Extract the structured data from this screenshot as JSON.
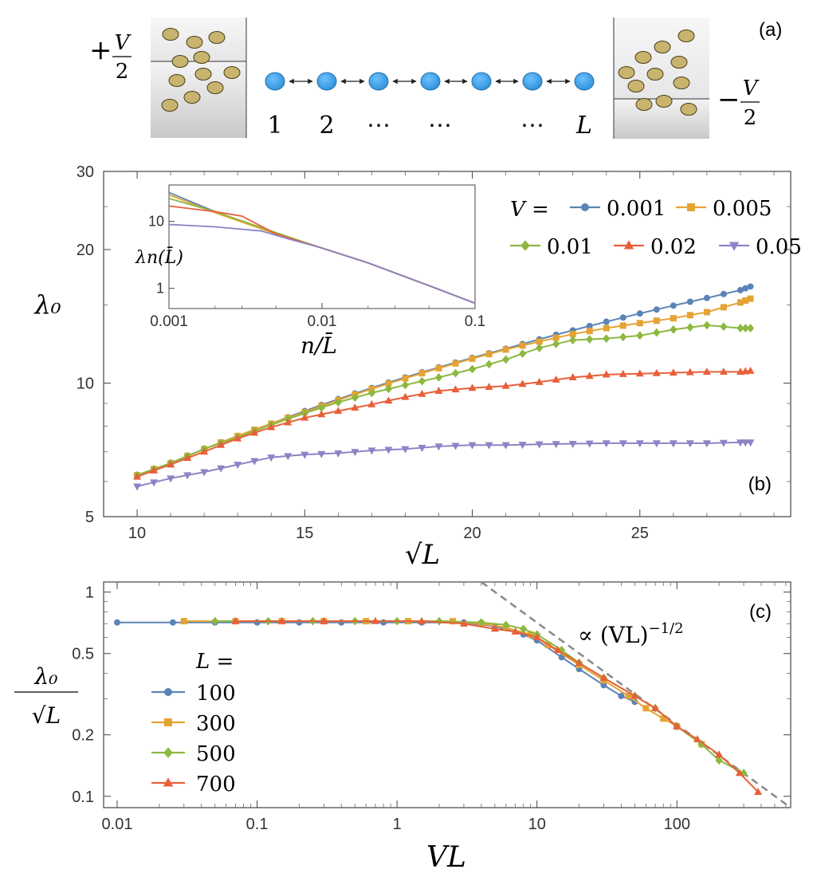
{
  "panel_a": {
    "label": "(a)",
    "left_sign": "+",
    "left_num": "V",
    "left_den": "2",
    "right_sign": "−",
    "right_num": "V",
    "right_den": "2",
    "site_labels": [
      "1",
      "2",
      "⋯",
      "⋯",
      "⋯",
      "L"
    ],
    "colors": {
      "site": "#3ea5ee",
      "particle": "#c8b46e",
      "reservoir": "#d8d8d8"
    }
  },
  "chart_data": [
    {
      "id": "b",
      "type": "line",
      "panel_label": "(b)",
      "xlabel": "√L",
      "ylabel": "λ₀",
      "xlim": [
        9,
        29.5
      ],
      "ylim": [
        5,
        30
      ],
      "yscale": "log",
      "xticks": [
        "10",
        "15",
        "20",
        "25"
      ],
      "yticks": [
        "5",
        "10",
        "20",
        "30"
      ],
      "legend_prefix": "V =",
      "series": [
        {
          "name": "0.001",
          "color": "#5b84b6",
          "marker": "circle",
          "x": [
            10,
            11,
            12,
            13,
            14,
            15,
            16,
            17,
            18,
            19,
            20,
            21,
            22,
            23,
            24,
            25,
            26,
            27,
            28,
            28.3
          ],
          "y": [
            6.2,
            6.6,
            7.1,
            7.6,
            8.1,
            8.65,
            9.2,
            9.75,
            10.3,
            10.85,
            11.4,
            11.95,
            12.55,
            13.15,
            13.75,
            14.35,
            14.95,
            15.55,
            16.2,
            16.5
          ]
        },
        {
          "name": "0.005",
          "color": "#e5a333",
          "marker": "square",
          "x": [
            10,
            11,
            12,
            13,
            14,
            15,
            16,
            17,
            18,
            19,
            20,
            21,
            22,
            23,
            24,
            25,
            26,
            27,
            28,
            28.3
          ],
          "y": [
            6.2,
            6.6,
            7.1,
            7.6,
            8.1,
            8.6,
            9.15,
            9.7,
            10.25,
            10.8,
            11.35,
            11.9,
            12.4,
            12.9,
            13.3,
            13.65,
            14.0,
            14.45,
            15.2,
            15.5
          ]
        },
        {
          "name": "0.01",
          "color": "#8db83f",
          "marker": "diamond",
          "x": [
            10,
            11,
            12,
            13,
            14,
            15,
            16,
            17,
            18,
            19,
            20,
            21,
            22,
            23,
            24,
            25,
            26,
            27,
            28,
            28.3
          ],
          "y": [
            6.2,
            6.6,
            7.1,
            7.55,
            8.05,
            8.55,
            9.05,
            9.5,
            9.9,
            10.3,
            10.75,
            11.3,
            12.0,
            12.5,
            12.6,
            12.8,
            13.2,
            13.5,
            13.3,
            13.3
          ]
        },
        {
          "name": "0.02",
          "color": "#e8603a",
          "marker": "triangle-up",
          "x": [
            10,
            11,
            12,
            13,
            14,
            15,
            16,
            17,
            18,
            19,
            20,
            21,
            22,
            23,
            24,
            25,
            26,
            27,
            28,
            28.3
          ],
          "y": [
            6.15,
            6.55,
            7.0,
            7.5,
            7.95,
            8.35,
            8.65,
            8.95,
            9.3,
            9.6,
            9.75,
            9.85,
            10.05,
            10.3,
            10.45,
            10.5,
            10.55,
            10.6,
            10.6,
            10.65
          ]
        },
        {
          "name": "0.05",
          "color": "#8f82c5",
          "marker": "triangle-down",
          "x": [
            10,
            11,
            12,
            13,
            14,
            15,
            16,
            17,
            18,
            19,
            20,
            21,
            22,
            23,
            24,
            25,
            26,
            27,
            28,
            28.3
          ],
          "y": [
            5.85,
            6.1,
            6.3,
            6.55,
            6.8,
            6.9,
            6.95,
            7.05,
            7.1,
            7.2,
            7.25,
            7.25,
            7.28,
            7.3,
            7.32,
            7.32,
            7.32,
            7.32,
            7.35,
            7.35
          ]
        }
      ],
      "inset": {
        "xlabel": "n/L̄",
        "ylabel": "λn(L̄)",
        "xscale": "log",
        "yscale": "log",
        "xlim": [
          0.001,
          0.1
        ],
        "ylim": [
          0.5,
          35
        ],
        "xticks": [
          "0.001",
          "0.01",
          "0.1"
        ],
        "yticks": [
          "1",
          "10"
        ],
        "series": [
          {
            "name": "0.001",
            "color": "#5b84b6",
            "x": [
              0.001,
              0.002,
              0.005,
              0.01,
              0.02,
              0.05,
              0.1
            ],
            "y": [
              27,
              14,
              6.5,
              4.0,
              2.4,
              1.1,
              0.6
            ]
          },
          {
            "name": "0.005",
            "color": "#e5a333",
            "x": [
              0.001,
              0.002,
              0.005,
              0.01,
              0.02,
              0.05,
              0.1
            ],
            "y": [
              25,
              13.5,
              6.5,
              4.0,
              2.4,
              1.1,
              0.6
            ]
          },
          {
            "name": "0.01",
            "color": "#8db83f",
            "x": [
              0.001,
              0.002,
              0.005,
              0.01,
              0.02,
              0.05,
              0.1
            ],
            "y": [
              22,
              14,
              6.8,
              4.0,
              2.4,
              1.1,
              0.6
            ]
          },
          {
            "name": "0.02",
            "color": "#e8603a",
            "x": [
              0.001,
              0.002,
              0.003,
              0.005,
              0.01,
              0.02,
              0.05,
              0.1
            ],
            "y": [
              17,
              14,
              12,
              6.5,
              4.0,
              2.4,
              1.1,
              0.6
            ]
          },
          {
            "name": "0.05",
            "color": "#8f82c5",
            "x": [
              0.001,
              0.002,
              0.004,
              0.006,
              0.01,
              0.02,
              0.05,
              0.1
            ],
            "y": [
              9,
              8.3,
              7.2,
              5.5,
              4.0,
              2.4,
              1.1,
              0.6
            ]
          }
        ]
      }
    },
    {
      "id": "c",
      "type": "line",
      "panel_label": "(c)",
      "xlabel": "VL",
      "ylabel_num": "λ₀",
      "ylabel_den": "√L",
      "xscale": "log",
      "yscale": "log",
      "xlim": [
        0.008,
        650
      ],
      "ylim": [
        0.088,
        1.12
      ],
      "xticks": [
        "0.01",
        "0.1",
        "1",
        "10",
        "100"
      ],
      "yticks": [
        "0.1",
        "0.2",
        "0.5",
        "1"
      ],
      "legend_title": "L =",
      "annotation": "∝ (VL)",
      "annotation_exp": "−1/2",
      "reference_line": {
        "style": "dashed",
        "color": "#888888",
        "x": [
          4.0,
          650
        ],
        "y": [
          1.12,
          0.088
        ]
      },
      "series": [
        {
          "name": "100",
          "color": "#5b84b6",
          "marker": "circle",
          "x": [
            0.01,
            0.025,
            0.05,
            0.1,
            0.2,
            0.4,
            0.8,
            1.5,
            3,
            5,
            8,
            10,
            15,
            20,
            30,
            40,
            50
          ],
          "y": [
            0.71,
            0.71,
            0.71,
            0.71,
            0.71,
            0.71,
            0.71,
            0.71,
            0.71,
            0.68,
            0.62,
            0.58,
            0.48,
            0.42,
            0.35,
            0.31,
            0.29
          ]
        },
        {
          "name": "300",
          "color": "#e5a333",
          "marker": "square",
          "x": [
            0.03,
            0.07,
            0.15,
            0.3,
            0.6,
            1.2,
            2.5,
            4,
            6,
            9,
            12,
            20,
            30,
            45,
            60,
            80,
            100,
            150
          ],
          "y": [
            0.72,
            0.72,
            0.72,
            0.72,
            0.72,
            0.72,
            0.72,
            0.7,
            0.67,
            0.62,
            0.55,
            0.44,
            0.37,
            0.31,
            0.27,
            0.24,
            0.22,
            0.18
          ]
        },
        {
          "name": "500",
          "color": "#8db83f",
          "marker": "diamond",
          "x": [
            0.05,
            0.12,
            0.25,
            0.5,
            1,
            2,
            4,
            6,
            8,
            10,
            15,
            20,
            30,
            50,
            70,
            100,
            150,
            200,
            300
          ],
          "y": [
            0.72,
            0.72,
            0.72,
            0.72,
            0.72,
            0.72,
            0.71,
            0.69,
            0.66,
            0.62,
            0.52,
            0.45,
            0.38,
            0.31,
            0.27,
            0.22,
            0.18,
            0.15,
            0.13
          ]
        },
        {
          "name": "700",
          "color": "#e8603a",
          "marker": "triangle-up",
          "x": [
            0.07,
            0.15,
            0.3,
            0.7,
            1.5,
            3,
            5,
            7,
            10,
            14,
            20,
            30,
            50,
            70,
            100,
            140,
            200,
            280,
            380
          ],
          "y": [
            0.72,
            0.72,
            0.72,
            0.72,
            0.72,
            0.7,
            0.66,
            0.64,
            0.6,
            0.52,
            0.45,
            0.38,
            0.31,
            0.27,
            0.22,
            0.19,
            0.16,
            0.13,
            0.105
          ]
        }
      ]
    }
  ]
}
